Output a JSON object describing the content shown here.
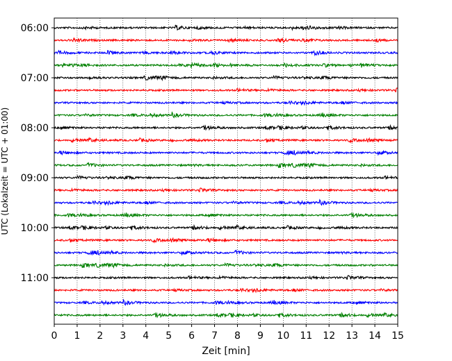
{
  "chart_data": {
    "type": "line",
    "title": "",
    "xlabel": "Zeit  [min]",
    "ylabel": "UTC (Lokalzeit = UTC + 01:00)",
    "xlim": [
      0,
      15
    ],
    "x_ticks": [
      0,
      1,
      2,
      3,
      4,
      5,
      6,
      7,
      8,
      9,
      10,
      11,
      12,
      13,
      14,
      15
    ],
    "x_tick_labels": [
      "0",
      "1",
      "2",
      "3",
      "4",
      "5",
      "6",
      "7",
      "8",
      "9",
      "10",
      "11",
      "12",
      "13",
      "14",
      "15"
    ],
    "y_tick_labels": [
      "06:00",
      "07:00",
      "08:00",
      "09:00",
      "10:00",
      "11:00"
    ],
    "grid": "vertical dotted",
    "trace_interval_minutes": 15,
    "color_cycle": [
      "#000000",
      "#ff0000",
      "#0000ff",
      "#008000"
    ],
    "traces": [
      {
        "start": "06:00"
      },
      {
        "start": "06:15"
      },
      {
        "start": "06:30"
      },
      {
        "start": "06:45"
      },
      {
        "start": "07:00"
      },
      {
        "start": "07:15"
      },
      {
        "start": "07:30"
      },
      {
        "start": "07:45"
      },
      {
        "start": "08:00"
      },
      {
        "start": "08:15"
      },
      {
        "start": "08:30"
      },
      {
        "start": "08:45"
      },
      {
        "start": "09:00"
      },
      {
        "start": "09:15"
      },
      {
        "start": "09:30"
      },
      {
        "start": "09:45"
      },
      {
        "start": "10:00"
      },
      {
        "start": "10:15"
      },
      {
        "start": "10:30"
      },
      {
        "start": "10:45"
      },
      {
        "start": "11:00"
      },
      {
        "start": "11:15"
      },
      {
        "start": "11:30"
      },
      {
        "start": "11:45"
      }
    ]
  }
}
